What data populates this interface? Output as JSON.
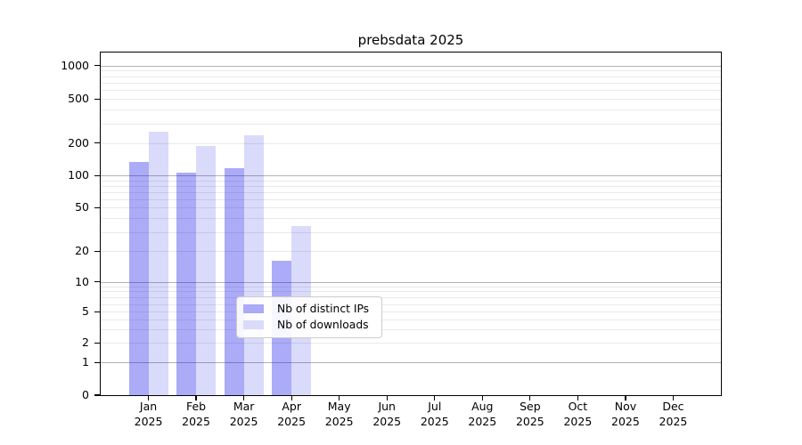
{
  "chart_data": {
    "type": "bar",
    "title": "prebsdata 2025",
    "x_categories": [
      "Jan",
      "Feb",
      "Mar",
      "Apr",
      "May",
      "Jun",
      "Jul",
      "Aug",
      "Sep",
      "Oct",
      "Nov",
      "Dec"
    ],
    "x_year_suffix": "2025",
    "series": [
      {
        "name": "Nb of distinct IPs",
        "fill": "rgba(0,0,230,0.33)",
        "legend_color": "#aaaaf6",
        "values": [
          133,
          107,
          116,
          16,
          0,
          0,
          0,
          0,
          0,
          0,
          0,
          0
        ]
      },
      {
        "name": "Nb of downloads",
        "fill": "rgba(0,0,230,0.145)",
        "legend_color": "#dadaf9",
        "values": [
          250,
          187,
          235,
          34,
          0,
          0,
          0,
          0,
          0,
          0,
          0,
          0
        ]
      }
    ],
    "y_axis": {
      "scale": "symlog",
      "ylim": [
        0,
        1258
      ],
      "ticks": [
        {
          "value": 0,
          "frac": 1.0
        },
        {
          "value": 1,
          "frac": 0.9053
        },
        {
          "value": 2,
          "frac": 0.8482
        },
        {
          "value": 5,
          "frac": 0.7574
        },
        {
          "value": 10,
          "frac": 0.6693
        },
        {
          "value": 20,
          "frac": 0.5803
        },
        {
          "value": 50,
          "frac": 0.4532
        },
        {
          "value": 100,
          "frac": 0.3598
        },
        {
          "value": 200,
          "frac": 0.2646
        },
        {
          "value": 500,
          "frac": 0.1367
        },
        {
          "value": 1000,
          "frac": 0.0397
        }
      ],
      "major_gridlines": [
        1,
        10,
        100,
        1000
      ],
      "minor_gridlines": [
        2,
        3,
        4,
        5,
        6,
        7,
        8,
        9,
        20,
        30,
        40,
        50,
        60,
        70,
        80,
        90,
        200,
        300,
        400,
        500,
        600,
        700,
        800,
        900
      ]
    },
    "legend": {
      "position": "lower-center",
      "entries": [
        "Nb of distinct IPs",
        "Nb of downloads"
      ]
    },
    "colors": {
      "major_grid": "#b3b3b3",
      "minor_grid": "#e9e9e9",
      "spine": "#000000",
      "background": "#ffffff"
    },
    "grid": true
  }
}
